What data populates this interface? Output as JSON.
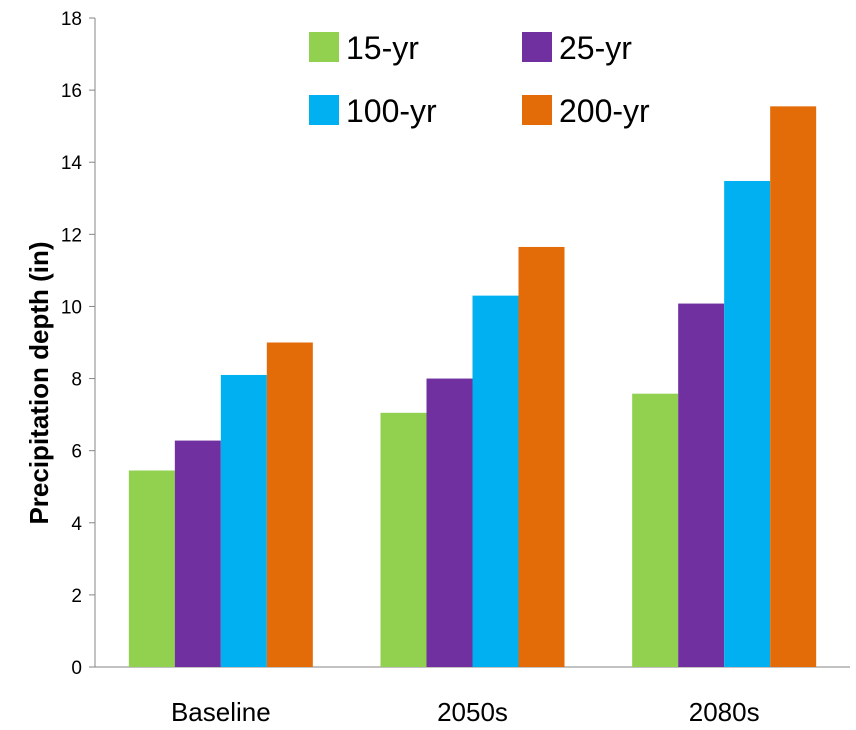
{
  "chart_data": {
    "type": "bar",
    "categories": [
      "Baseline",
      "2050s",
      "2080s"
    ],
    "series": [
      {
        "name": "15-yr",
        "values": [
          5.45,
          7.05,
          7.58
        ],
        "color": "#92D050"
      },
      {
        "name": "25-yr",
        "values": [
          6.28,
          8.0,
          10.08
        ],
        "color": "#7030A0"
      },
      {
        "name": "100-yr",
        "values": [
          8.1,
          10.3,
          13.48
        ],
        "color": "#00B0F0"
      },
      {
        "name": "200-yr",
        "values": [
          9.0,
          11.65,
          15.55
        ],
        "color": "#E36C09"
      }
    ],
    "ylabel": "Precipitation depth (in)",
    "xlabel": "",
    "ylim": [
      0,
      18
    ],
    "yticks": [
      "0",
      "2",
      "4",
      "6",
      "8",
      "10",
      "12",
      "14",
      "16",
      "18"
    ],
    "grid": false,
    "legend_position": "top"
  }
}
